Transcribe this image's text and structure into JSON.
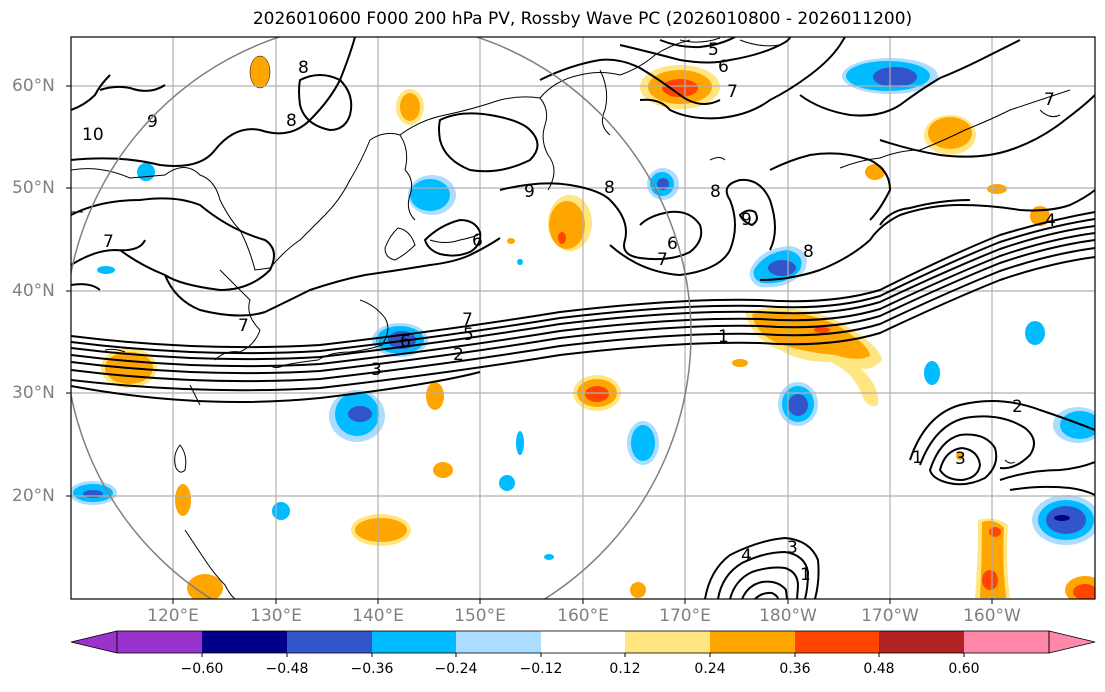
{
  "title": "2026010600 F000 200 hPa PV, Rossby Wave PC (2026010800 - 2026011200)",
  "map": {
    "lat_labels": [
      "60°N",
      "50°N",
      "40°N",
      "30°N",
      "20°N"
    ],
    "lon_labels": [
      "120°E",
      "130°E",
      "140°E",
      "150°E",
      "160°E",
      "170°E",
      "180°W",
      "170°W",
      "160°W"
    ],
    "contour_labels": [
      "5",
      "6",
      "7",
      "8",
      "8",
      "9",
      "10",
      "7",
      "6",
      "9",
      "8",
      "6",
      "7",
      "8",
      "9",
      "8",
      "7",
      "6",
      "5",
      "1",
      "2",
      "3",
      "4",
      "7",
      "2",
      "1",
      "3",
      "4",
      "3",
      "1",
      "7"
    ]
  },
  "colorbar": {
    "ticks": [
      "−0.60",
      "−0.48",
      "−0.36",
      "−0.24",
      "−0.12",
      "0.12",
      "0.24",
      "0.36",
      "0.48",
      "0.60"
    ],
    "colors": [
      "#9933cc",
      "#000088",
      "#3355cc",
      "#00bbff",
      "#aaddff",
      "#ffffff",
      "#ffe680",
      "#ffa500",
      "#ff4500",
      "#b22222",
      "#ff88aa",
      "#ff88aa"
    ]
  }
}
